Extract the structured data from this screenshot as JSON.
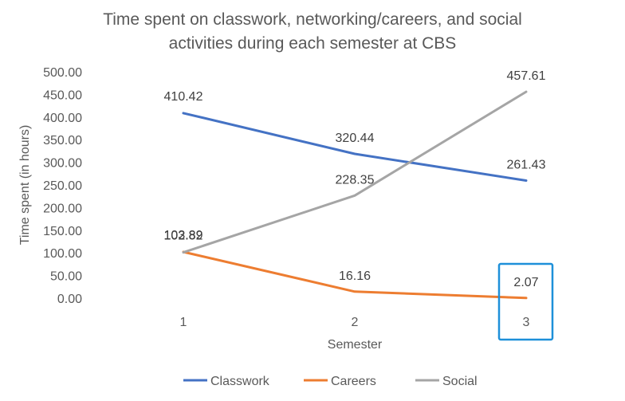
{
  "chart_data": {
    "type": "line",
    "title": "Time spent on classwork, networking/careers, and social activities during each semester at CBS",
    "title_lines": [
      "Time spent on classwork, networking/careers, and social",
      "activities during each semester at CBS"
    ],
    "xlabel": "Semester",
    "ylabel": "Time spent (in hours)",
    "categories": [
      "1",
      "2",
      "3"
    ],
    "ylim": [
      0,
      500
    ],
    "yticks": [
      "0.00",
      "50.00",
      "100.00",
      "150.00",
      "200.00",
      "250.00",
      "300.00",
      "350.00",
      "400.00",
      "450.00",
      "500.00"
    ],
    "grid": false,
    "legend_position": "bottom",
    "series": [
      {
        "name": "Classwork",
        "color": "#4472C4",
        "values": [
          410.42,
          320.44,
          261.43
        ],
        "labels": [
          "410.42",
          "320.44",
          "261.43"
        ]
      },
      {
        "name": "Careers",
        "color": "#ED7D31",
        "values": [
          103.89,
          16.16,
          2.07
        ],
        "labels": [
          "103.89",
          "16.16",
          "2.07"
        ]
      },
      {
        "name": "Social",
        "color": "#A5A5A5",
        "values": [
          102.82,
          228.35,
          457.61
        ],
        "labels": [
          "102.82",
          "228.35",
          "457.61"
        ]
      }
    ],
    "highlight": {
      "category": "3",
      "color": "#1E90D9"
    }
  }
}
